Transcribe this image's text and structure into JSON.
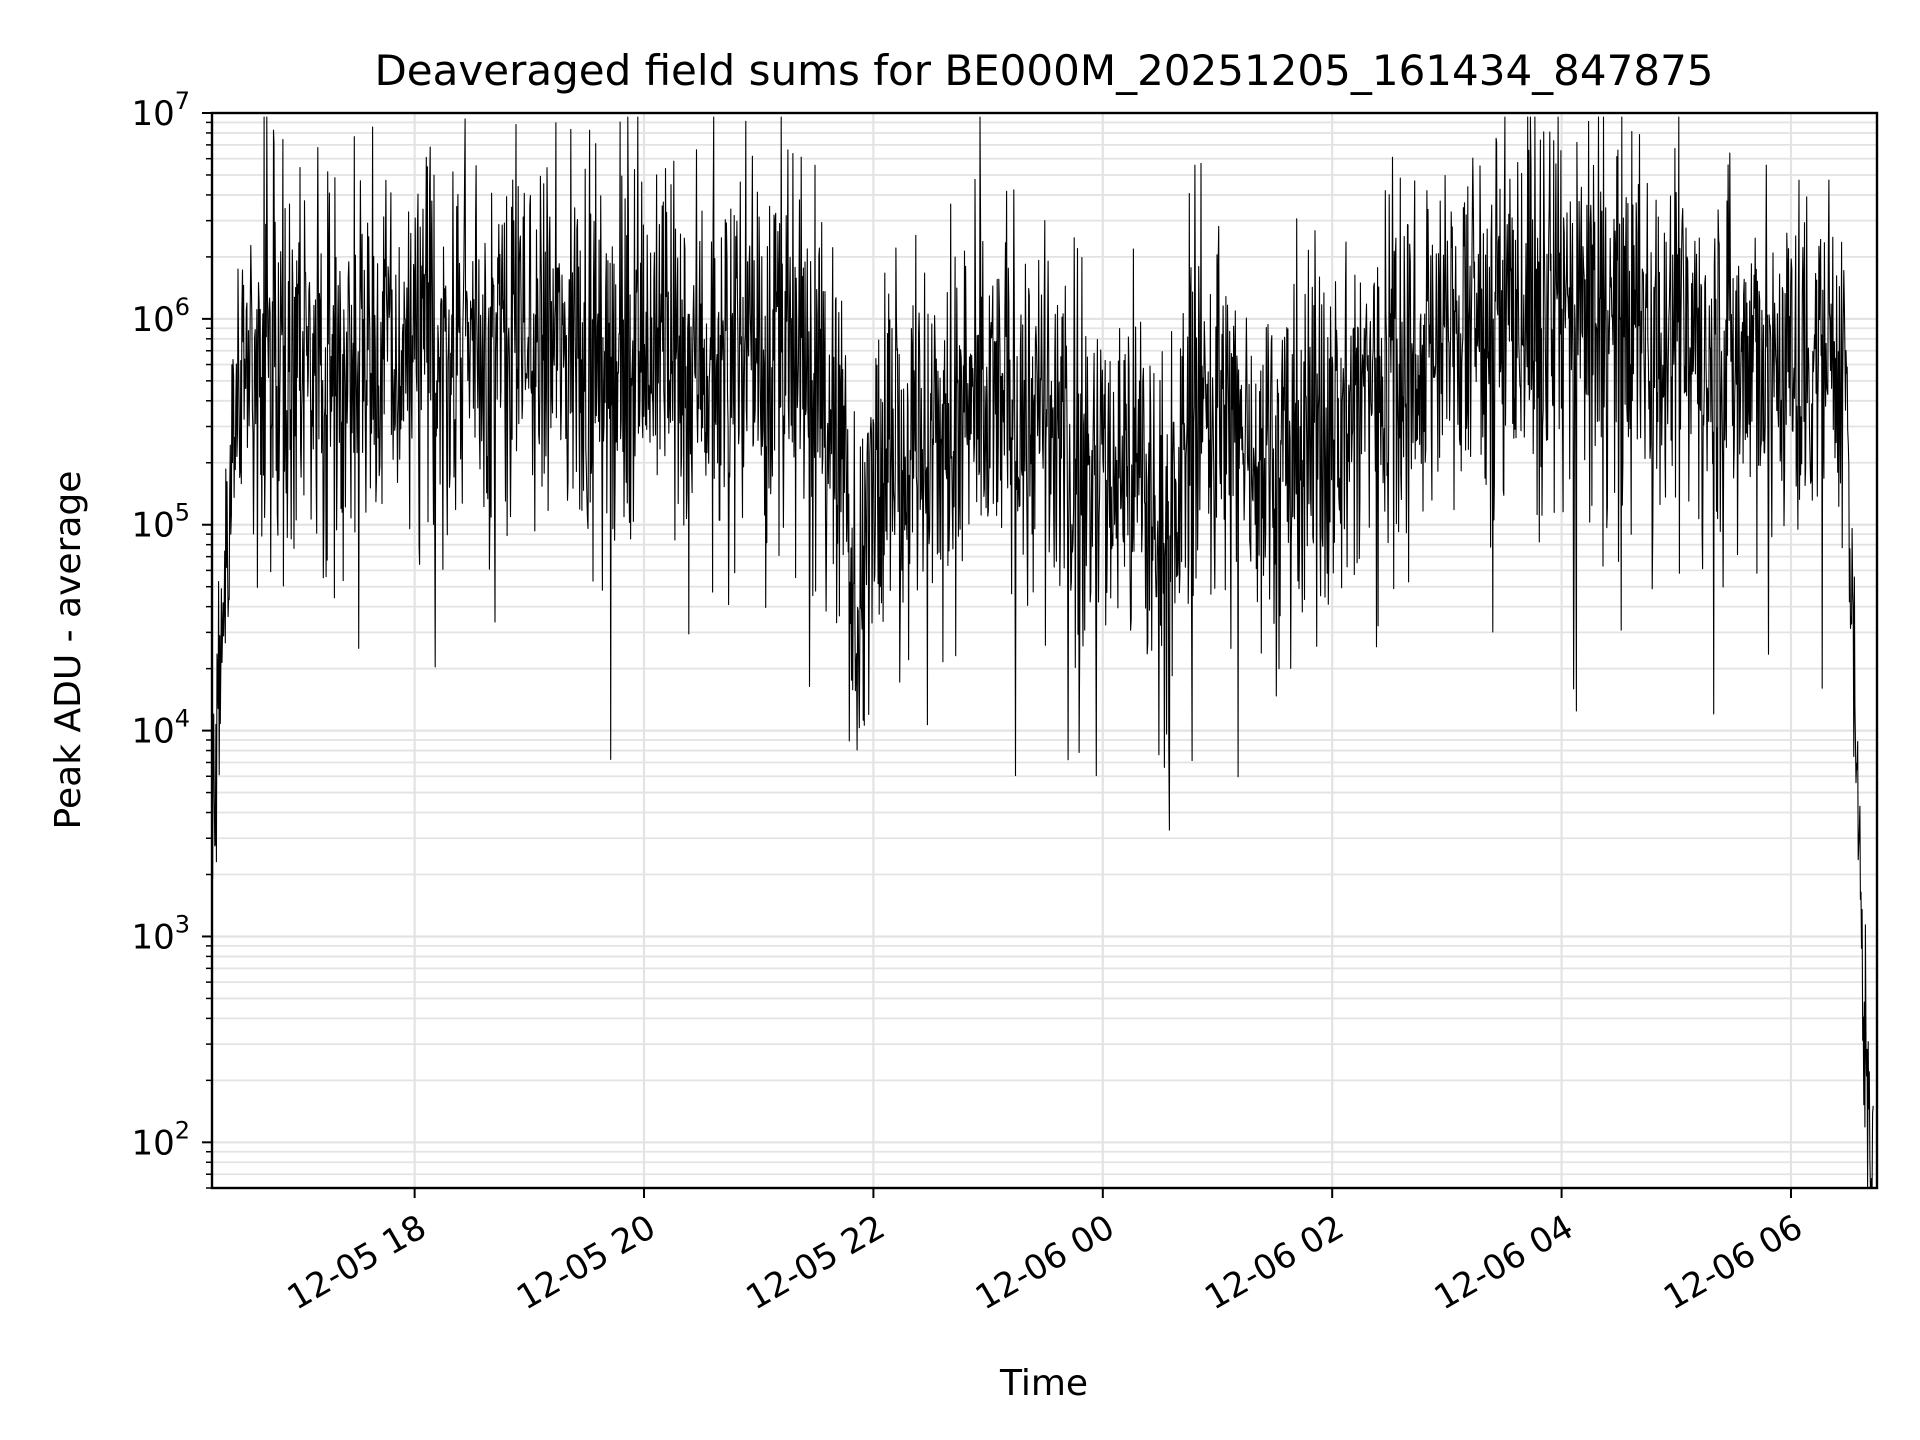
{
  "chart_data": {
    "type": "line",
    "title": "Deaveraged field sums for BE000M_20251205_161434_847875",
    "xlabel": "Time",
    "ylabel": "Peak ADU - average",
    "yscale": "log",
    "ylim": [
      60,
      10000000
    ],
    "xlim": [
      "2025-12-05 16:14",
      "2025-12-06 06:45"
    ],
    "grid": true,
    "line_color": "#000000",
    "grid_color": "#e3e3e3",
    "x_ticks": [
      {
        "label": "12-05 18",
        "value": "2025-12-05 18:00"
      },
      {
        "label": "12-05 20",
        "value": "2025-12-05 20:00"
      },
      {
        "label": "12-05 22",
        "value": "2025-12-05 22:00"
      },
      {
        "label": "12-06 00",
        "value": "2025-12-06 00:00"
      },
      {
        "label": "12-06 02",
        "value": "2025-12-06 02:00"
      },
      {
        "label": "12-06 04",
        "value": "2025-12-06 04:00"
      },
      {
        "label": "12-06 06",
        "value": "2025-12-06 06:00"
      }
    ],
    "y_ticks": [
      {
        "base": "10",
        "exp": "2",
        "value": 100
      },
      {
        "base": "10",
        "exp": "3",
        "value": 1000
      },
      {
        "base": "10",
        "exp": "4",
        "value": 10000
      },
      {
        "base": "10",
        "exp": "5",
        "value": 100000
      },
      {
        "base": "10",
        "exp": "6",
        "value": 1000000
      },
      {
        "base": "10",
        "exp": "7",
        "value": 10000000
      }
    ],
    "series": [
      {
        "x": [
          "2025-12-05 16:14",
          "2025-12-05 16:17",
          "2025-12-05 16:22",
          "2025-12-05 16:28",
          "2025-12-05 16:35",
          "2025-12-05 17:00",
          "2025-12-05 17:30",
          "2025-12-05 18:00",
          "2025-12-05 18:30",
          "2025-12-05 19:00",
          "2025-12-05 19:30",
          "2025-12-05 20:00",
          "2025-12-05 20:30",
          "2025-12-05 21:00",
          "2025-12-05 21:30",
          "2025-12-05 21:45",
          "2025-12-05 21:52",
          "2025-12-05 22:00",
          "2025-12-05 22:20",
          "2025-12-05 22:45",
          "2025-12-05 23:15",
          "2025-12-05 23:45",
          "2025-12-06 00:15",
          "2025-12-06 00:35",
          "2025-12-06 00:50",
          "2025-12-06 01:00",
          "2025-12-06 01:30",
          "2025-12-06 02:00",
          "2025-12-06 02:30",
          "2025-12-06 03:00",
          "2025-12-06 03:30",
          "2025-12-06 04:00",
          "2025-12-06 04:30",
          "2025-12-06 05:00",
          "2025-12-06 05:30",
          "2025-12-06 06:00",
          "2025-12-06 06:28",
          "2025-12-06 06:32",
          "2025-12-06 06:36",
          "2025-12-06 06:40",
          "2025-12-06 06:43"
        ],
        "y": [
          2000,
          10000,
          100000,
          600000,
          700000,
          700000,
          650000,
          700000,
          800000,
          750000,
          700000,
          750000,
          700000,
          650000,
          500000,
          200000,
          20000,
          250000,
          250000,
          280000,
          450000,
          180000,
          200000,
          80000,
          500000,
          300000,
          250000,
          250000,
          700000,
          800000,
          1200000,
          1100000,
          1000000,
          900000,
          700000,
          600000,
          800000,
          30000,
          2000,
          150,
          60
        ]
      }
    ]
  }
}
